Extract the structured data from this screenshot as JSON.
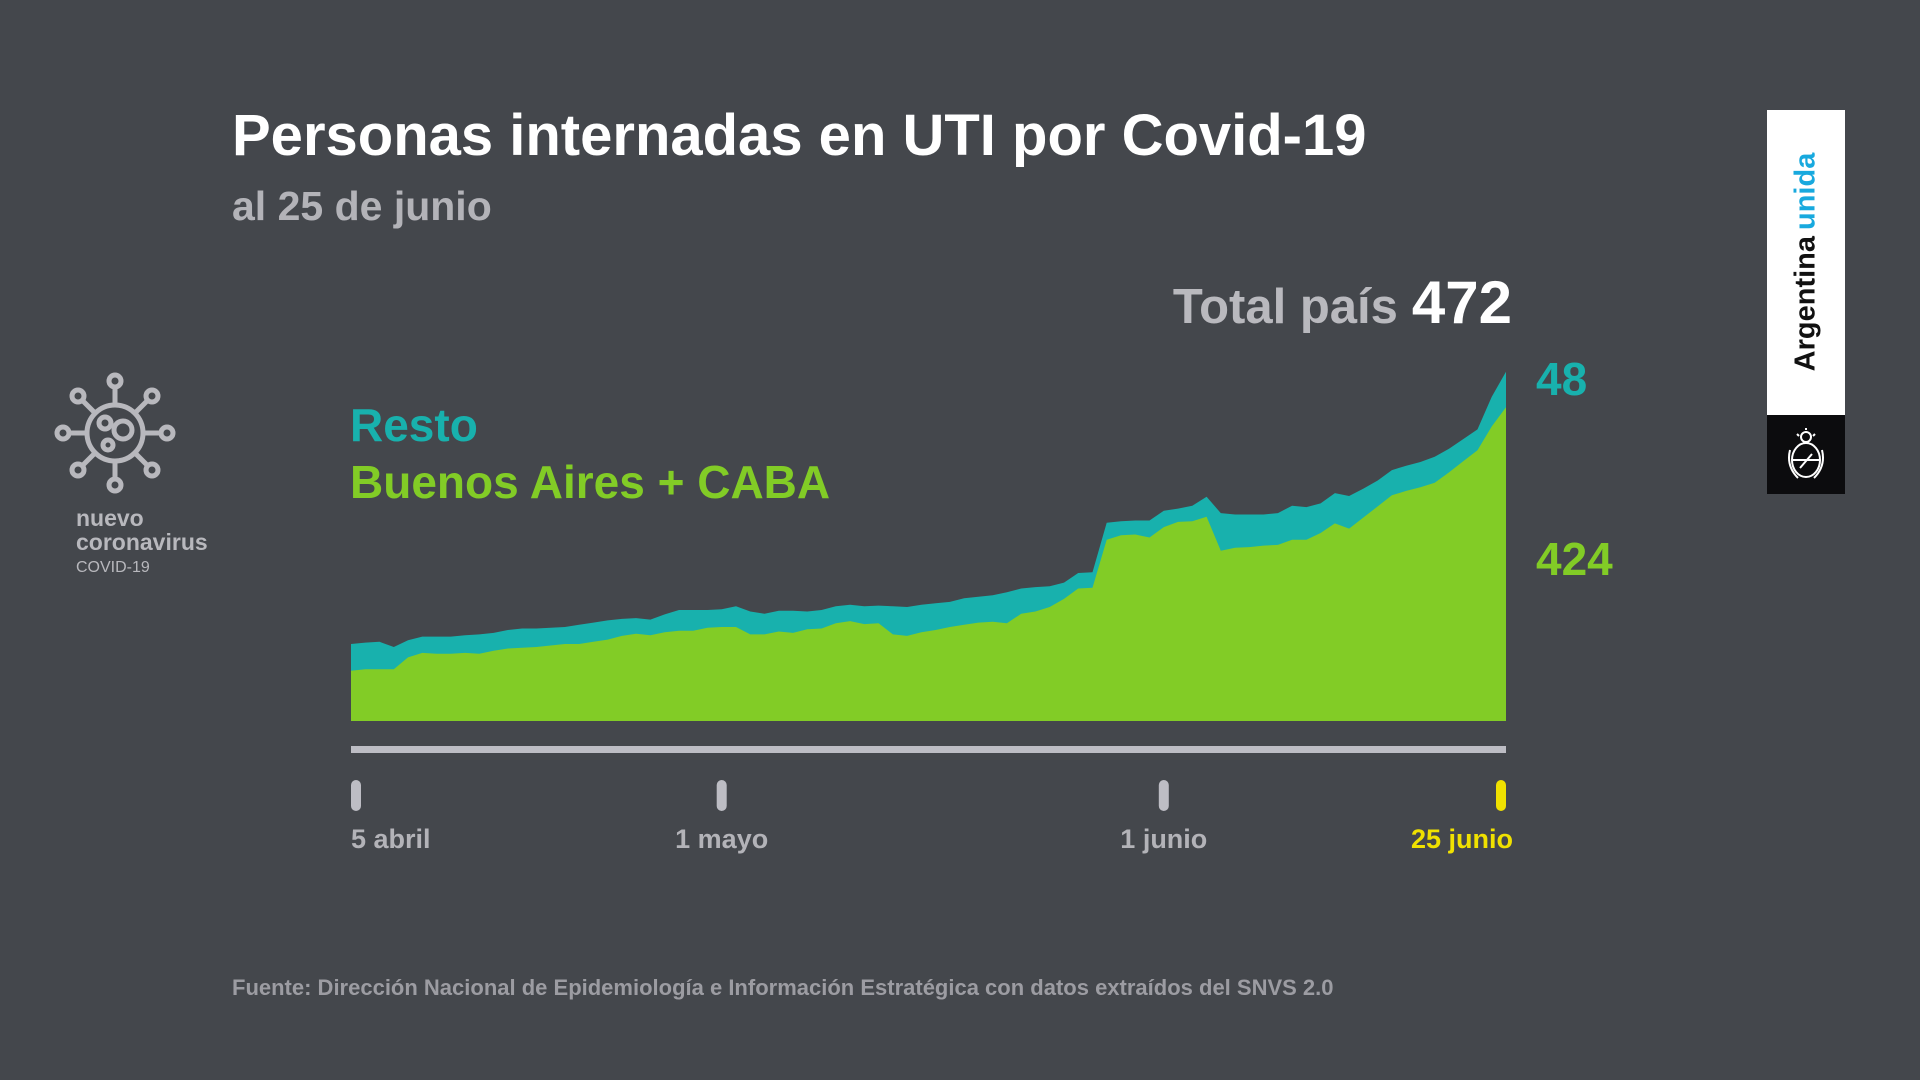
{
  "title": "Personas internadas en UTI por Covid-19",
  "subtitle": "al 25 de junio",
  "total": {
    "label": "Total país",
    "value": "472"
  },
  "legend": {
    "resto": "Resto",
    "ba": "Buenos Aires + CABA"
  },
  "end_labels": {
    "resto": "48",
    "ba": "424"
  },
  "logo": {
    "line1": "nuevo",
    "line2": "coronavirus",
    "line3": "COVID-19"
  },
  "brand": {
    "word1": "Argentina",
    "word2": "unida"
  },
  "footer": "Fuente: Dirección Nacional de Epidemiología e Información Estratégica con datos extraídos del SNVS 2.0",
  "colors": {
    "background": "#44474c",
    "resto": "#18b1ad",
    "ba": "#82cc26",
    "highlight": "#f0e100",
    "axis": "#bdbdc4"
  },
  "chart_data": {
    "type": "area",
    "stacked": true,
    "title": "Personas internadas en UTI por Covid-19",
    "x_start": "5 abril",
    "x_end": "25 junio",
    "ylim": [
      0,
      472
    ],
    "series": [
      {
        "name": "Buenos Aires + CABA",
        "color": "#82cc26",
        "values": [
          68,
          70,
          70,
          70,
          86,
          92,
          91,
          91,
          92,
          91,
          95,
          98,
          99,
          100,
          102,
          104,
          104,
          107,
          110,
          115,
          118,
          116,
          120,
          122,
          122,
          126,
          127,
          127,
          117,
          117,
          121,
          119,
          124,
          125,
          132,
          135,
          131,
          132,
          117,
          115,
          120,
          123,
          127,
          130,
          133,
          134,
          132,
          145,
          148,
          154,
          165,
          179,
          180,
          245,
          251,
          252,
          248,
          262,
          269,
          270,
          276,
          230,
          234,
          235,
          237,
          238,
          245,
          245,
          254,
          267,
          260,
          275,
          290,
          305,
          311,
          316,
          322,
          336,
          351,
          366,
          398,
          424
        ]
      },
      {
        "name": "Resto",
        "color": "#18b1ad",
        "values": [
          36,
          36,
          37,
          30,
          23,
          22,
          23,
          23,
          24,
          26,
          24,
          25,
          26,
          25,
          24,
          23,
          26,
          26,
          26,
          23,
          21,
          21,
          24,
          28,
          28,
          24,
          24,
          28,
          31,
          28,
          28,
          30,
          24,
          25,
          23,
          22,
          24,
          24,
          38,
          39,
          37,
          36,
          34,
          36,
          35,
          36,
          42,
          34,
          33,
          28,
          22,
          21,
          21,
          23,
          19,
          19,
          23,
          22,
          18,
          21,
          27,
          51,
          45,
          44,
          42,
          43,
          46,
          44,
          40,
          41,
          44,
          39,
          35,
          34,
          34,
          34,
          35,
          32,
          30,
          28,
          40,
          48
        ]
      }
    ],
    "x_ticks": [
      {
        "label": "5 abril",
        "index": 0,
        "highlight": false
      },
      {
        "label": "1 mayo",
        "index": 26,
        "highlight": false
      },
      {
        "label": "1 junio",
        "index": 57,
        "highlight": false
      },
      {
        "label": "25 junio",
        "index": 81,
        "highlight": true
      }
    ]
  }
}
